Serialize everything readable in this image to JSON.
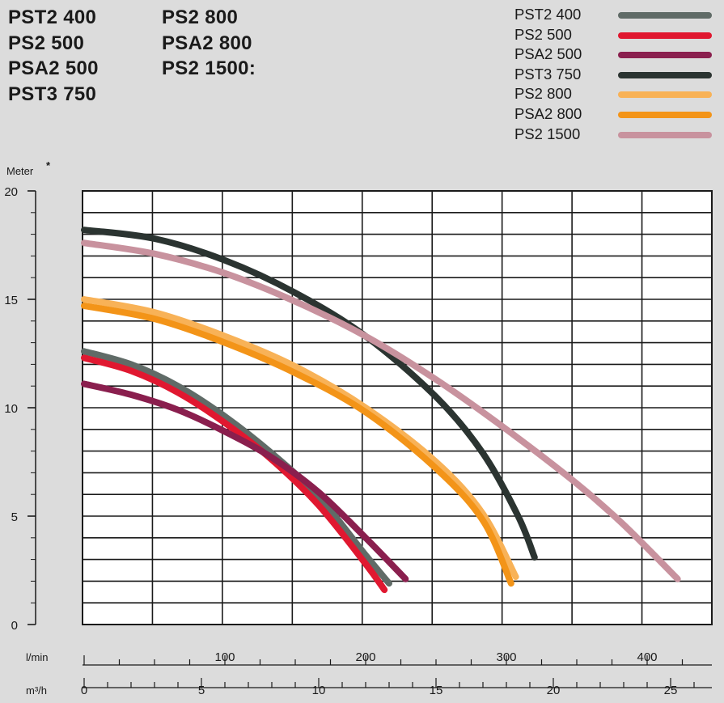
{
  "models": {
    "col1": [
      "PST2 400",
      "PS2 500",
      "PSA2 500",
      "PST3 750"
    ],
    "col2": [
      "PS2 800",
      "PSA2 800",
      "PS2 1500:"
    ]
  },
  "legend": [
    {
      "label": "PST2 400",
      "color": "#606b67"
    },
    {
      "label": "PS2 500",
      "color": "#e01830"
    },
    {
      "label": "PSA2 500",
      "color": "#8a1f4e"
    },
    {
      "label": "PST3 750",
      "color": "#2b3431"
    },
    {
      "label": "PS2 800",
      "color": "#f8b257"
    },
    {
      "label": "PSA2 800",
      "color": "#f39418"
    },
    {
      "label": "PS2 1500",
      "color": "#c8929e"
    }
  ],
  "chart_data": {
    "type": "line",
    "ylabel": "Meter",
    "ylabel_mark": "*",
    "ylim": [
      0,
      20
    ],
    "xlim": [
      0,
      26.5
    ],
    "yticks": [
      0,
      5,
      10,
      15,
      20
    ],
    "grid": true,
    "legend_position": "top-right",
    "x_axis_primary": {
      "unit": "m³/h",
      "ticks": [
        0,
        5,
        10,
        15,
        20,
        25
      ]
    },
    "x_axis_secondary": {
      "unit": "l/min",
      "ticks": [
        100,
        200,
        300,
        400
      ]
    },
    "series": [
      {
        "name": "PST2 400",
        "color": "#606b67",
        "x": [
          0,
          2,
          4,
          6,
          8,
          10,
          12,
          13
        ],
        "y": [
          12.6,
          12.0,
          11.0,
          9.6,
          7.9,
          5.9,
          3.2,
          1.9
        ]
      },
      {
        "name": "PS2 500",
        "color": "#e01830",
        "x": [
          0,
          2,
          4,
          6,
          8,
          10,
          12,
          12.8
        ],
        "y": [
          12.3,
          11.7,
          10.7,
          9.3,
          7.6,
          5.5,
          2.8,
          1.6
        ]
      },
      {
        "name": "PSA2 500",
        "color": "#8a1f4e",
        "x": [
          0,
          2,
          4,
          6,
          8,
          10,
          12,
          13.7
        ],
        "y": [
          11.1,
          10.6,
          9.9,
          8.9,
          7.7,
          6.1,
          4.0,
          2.1
        ]
      },
      {
        "name": "PST3 750",
        "color": "#2b3431",
        "x": [
          0,
          3,
          6,
          9,
          12,
          15,
          17,
          18.5,
          19.2
        ],
        "y": [
          18.2,
          17.8,
          16.8,
          15.3,
          13.3,
          10.5,
          7.9,
          5.0,
          3.1
        ]
      },
      {
        "name": "PS2 800",
        "color": "#f8b257",
        "x": [
          0,
          3,
          6,
          9,
          12,
          15,
          17,
          18.4
        ],
        "y": [
          15.0,
          14.4,
          13.3,
          11.9,
          10.0,
          7.5,
          5.1,
          2.2
        ]
      },
      {
        "name": "PSA2 800",
        "color": "#f39418",
        "x": [
          0,
          3,
          6,
          9,
          12,
          15,
          17,
          18.2
        ],
        "y": [
          14.7,
          14.1,
          13.0,
          11.6,
          9.8,
          7.2,
          4.8,
          1.9
        ]
      },
      {
        "name": "PS2 1500",
        "color": "#c8929e",
        "x": [
          0,
          3,
          6,
          9,
          12,
          15,
          18,
          21,
          23,
          25.3
        ],
        "y": [
          17.6,
          17.1,
          16.2,
          14.9,
          13.3,
          11.3,
          9.0,
          6.5,
          4.6,
          2.1
        ]
      }
    ]
  }
}
